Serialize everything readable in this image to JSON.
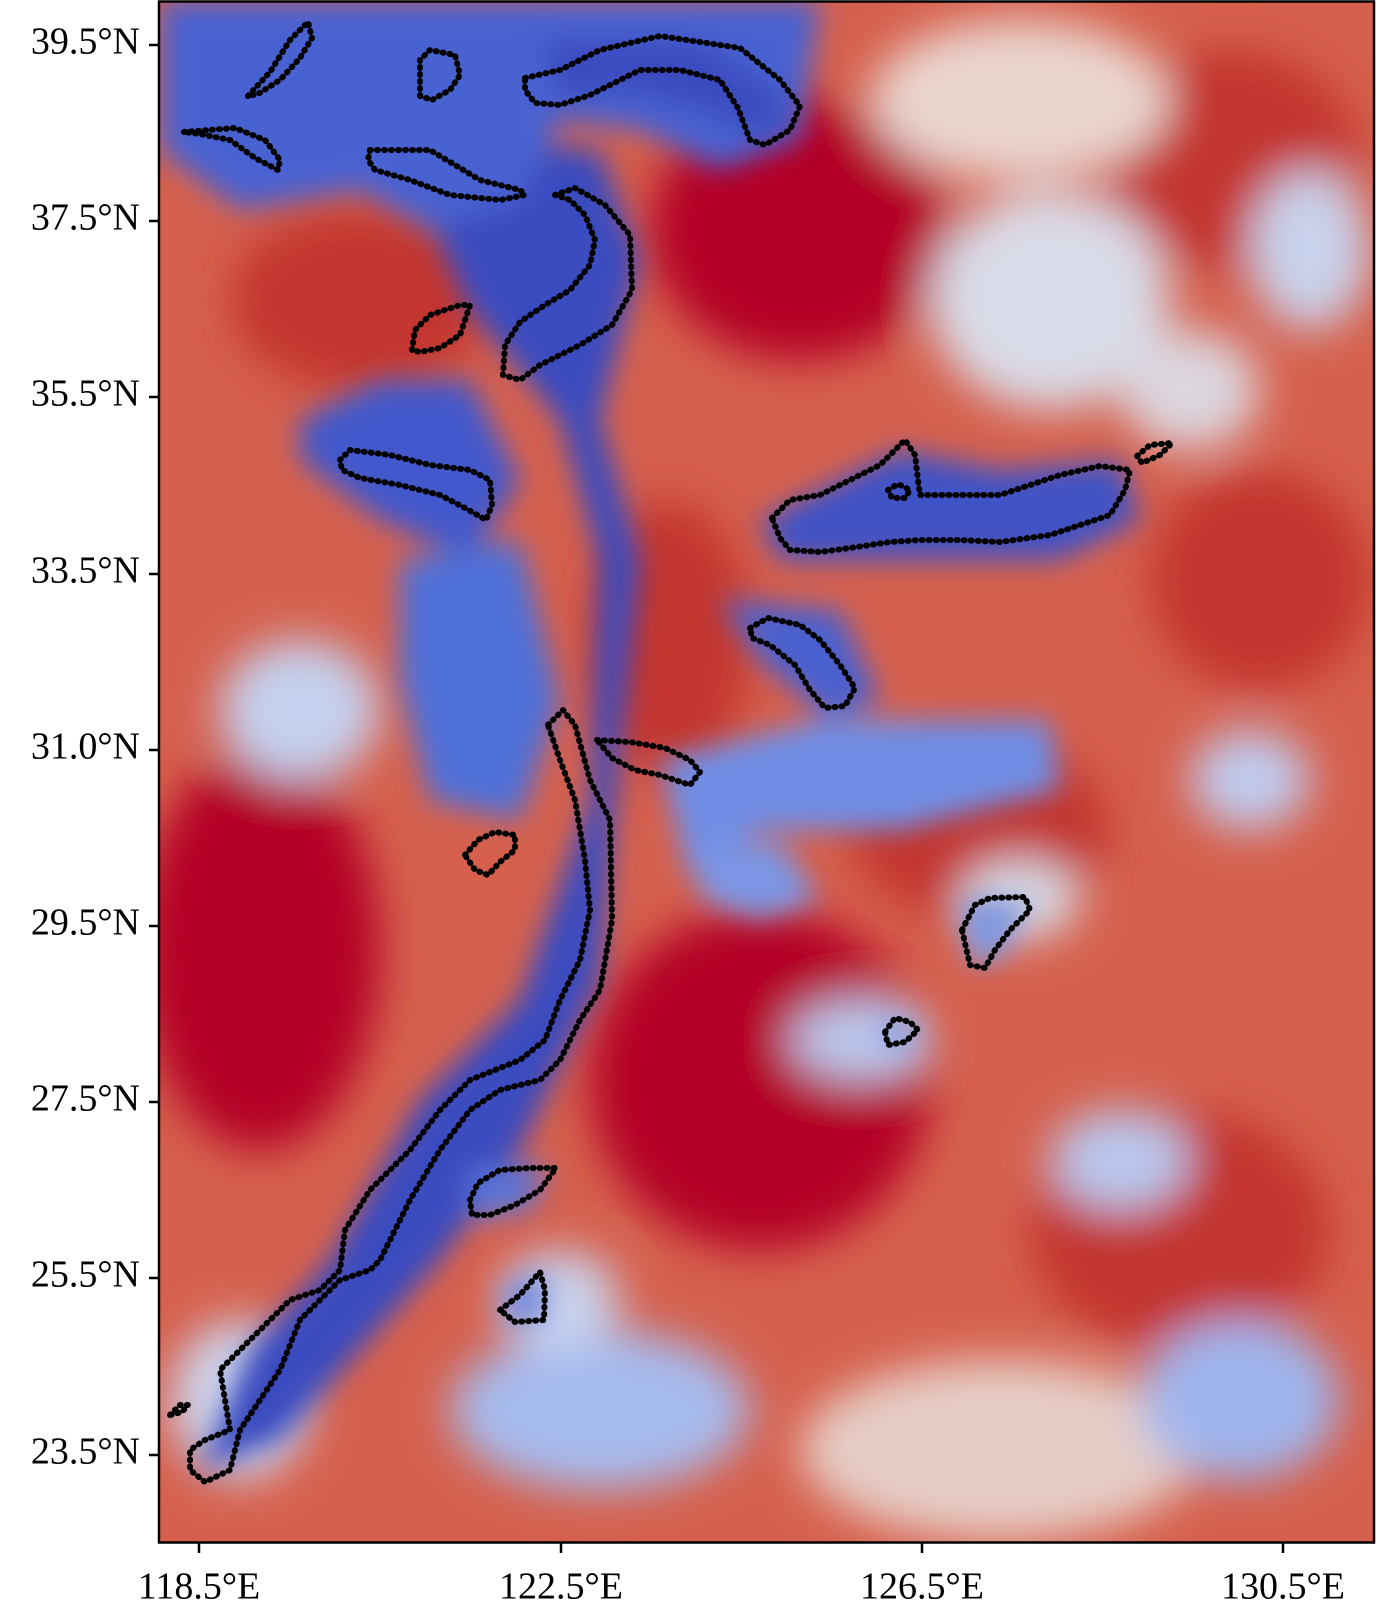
{
  "colors": {
    "low": "#3a4cc0",
    "mid": "#dddcdc",
    "high": "#b40426",
    "contour": "#000000"
  },
  "axes": {
    "x_ticks": [
      "118.5°E",
      "122.5°E",
      "126.5°E",
      "130.5°E"
    ],
    "y_ticks": [
      "39.5°N",
      "37.5°N",
      "35.5°N",
      "33.5°N",
      "31.0°N",
      "29.5°N",
      "27.5°N",
      "25.5°N",
      "23.5°N"
    ]
  },
  "map": {
    "colormap": "coolwarm",
    "contour_style": "dotted black outline",
    "x_range": [
      118.05,
      131.05
    ],
    "y_range": [
      23.05,
      40.0
    ]
  }
}
